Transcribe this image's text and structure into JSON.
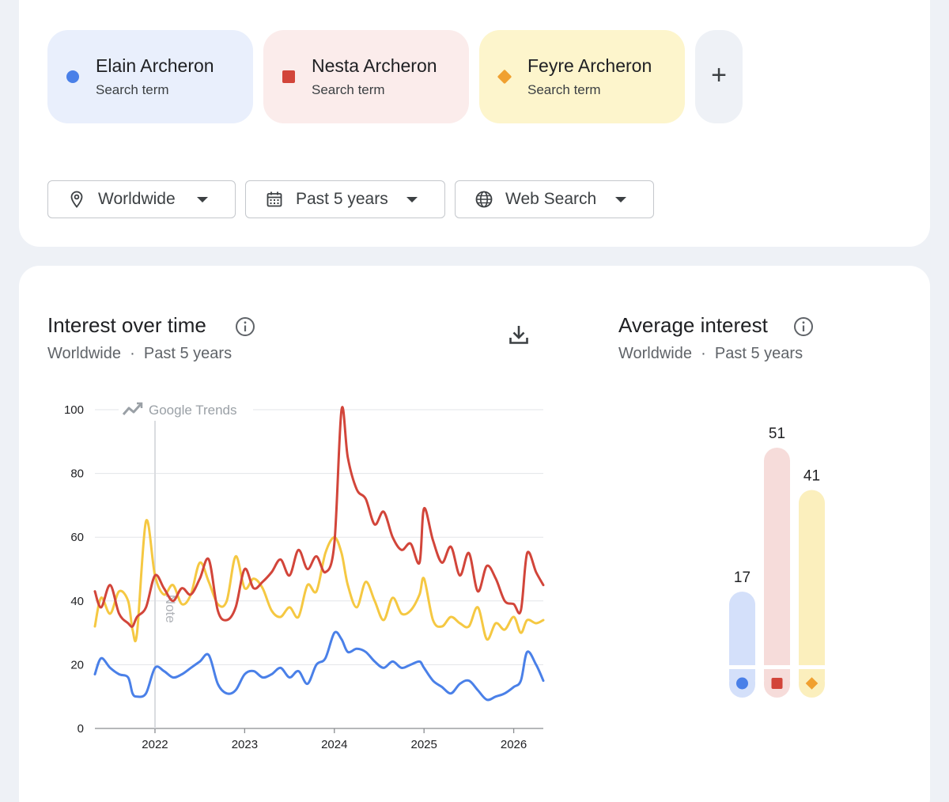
{
  "search_terms": [
    {
      "name": "Elain Archeron",
      "type": "Search term",
      "color": "#4a80e8",
      "marker": "circle"
    },
    {
      "name": "Nesta Archeron",
      "type": "Search term",
      "color": "#d2453a",
      "marker": "square"
    },
    {
      "name": "Feyre Archeron",
      "type": "Search term",
      "color": "#f0a030",
      "marker": "diamond"
    }
  ],
  "add_term_label": "+",
  "filters": {
    "location": "Worldwide",
    "time": "Past 5 years",
    "property": "Web Search"
  },
  "interest_over_time": {
    "title": "Interest over time",
    "location": "Worldwide",
    "separator": "·",
    "period": "Past 5 years",
    "watermark": "Google Trends",
    "note_label": "Note"
  },
  "average_interest": {
    "title": "Average interest",
    "location": "Worldwide",
    "separator": "·",
    "period": "Past 5 years"
  },
  "chart_data": [
    {
      "type": "line",
      "title": "Interest over time",
      "xlabel": "",
      "ylabel": "",
      "ylim": [
        0,
        100
      ],
      "yticks": [
        0,
        20,
        40,
        60,
        80,
        100
      ],
      "xticks": [
        "2022",
        "2023",
        "2024",
        "2025",
        "2026"
      ],
      "xlim": [
        2021.33,
        2026.33
      ],
      "grid": true,
      "x": [
        2021.33,
        2021.4,
        2021.5,
        2021.6,
        2021.7,
        2021.75,
        2021.8,
        2021.9,
        2022.0,
        2022.1,
        2022.2,
        2022.3,
        2022.4,
        2022.5,
        2022.6,
        2022.7,
        2022.8,
        2022.9,
        2023.0,
        2023.1,
        2023.2,
        2023.3,
        2023.4,
        2023.5,
        2023.6,
        2023.7,
        2023.8,
        2023.9,
        2024.0,
        2024.08,
        2024.15,
        2024.25,
        2024.35,
        2024.45,
        2024.55,
        2024.65,
        2024.75,
        2024.85,
        2024.95,
        2025.0,
        2025.1,
        2025.2,
        2025.3,
        2025.4,
        2025.5,
        2025.6,
        2025.7,
        2025.8,
        2025.9,
        2026.0,
        2026.08,
        2026.15,
        2026.25,
        2026.33
      ],
      "series": [
        {
          "name": "Elain Archeron",
          "color": "#4a80e8",
          "values": [
            17,
            22,
            19,
            17,
            16,
            11,
            10,
            11,
            19,
            18,
            16,
            17,
            19,
            21,
            23,
            14,
            11,
            12,
            17,
            18,
            16,
            17,
            19,
            16,
            18,
            14,
            20,
            22,
            30,
            28,
            24,
            25,
            24,
            21,
            19,
            21,
            19,
            20,
            21,
            19,
            15,
            13,
            11,
            14,
            15,
            12,
            9,
            10,
            11,
            13,
            15,
            24,
            20,
            15
          ]
        },
        {
          "name": "Nesta Archeron",
          "color": "#d2453a",
          "values": [
            43,
            38,
            45,
            36,
            33,
            32,
            35,
            38,
            48,
            44,
            40,
            44,
            42,
            47,
            53,
            37,
            34,
            38,
            50,
            44,
            46,
            49,
            53,
            48,
            56,
            50,
            54,
            49,
            58,
            100,
            85,
            75,
            72,
            64,
            68,
            60,
            56,
            58,
            52,
            69,
            59,
            52,
            57,
            48,
            55,
            43,
            51,
            47,
            40,
            39,
            37,
            55,
            49,
            45
          ]
        },
        {
          "name": "Feyre Archeron",
          "color": "#f5c842",
          "values": [
            32,
            41,
            36,
            43,
            40,
            31,
            30,
            65,
            48,
            42,
            45,
            39,
            42,
            52,
            46,
            39,
            40,
            54,
            44,
            47,
            44,
            37,
            35,
            38,
            35,
            45,
            43,
            55,
            60,
            55,
            45,
            38,
            46,
            40,
            34,
            41,
            36,
            37,
            42,
            47,
            34,
            32,
            35,
            33,
            32,
            38,
            28,
            33,
            31,
            35,
            30,
            34,
            33,
            34
          ]
        }
      ]
    },
    {
      "type": "bar",
      "title": "Average interest",
      "categories": [
        "Elain Archeron",
        "Nesta Archeron",
        "Feyre Archeron"
      ],
      "values": [
        17,
        51,
        41
      ],
      "colors": [
        "#4a80e8",
        "#d2453a",
        "#f0a030"
      ],
      "track_colors": [
        "#d4e0fa",
        "#f6dcda",
        "#fbefbd"
      ],
      "ylim": [
        0,
        51
      ]
    }
  ]
}
